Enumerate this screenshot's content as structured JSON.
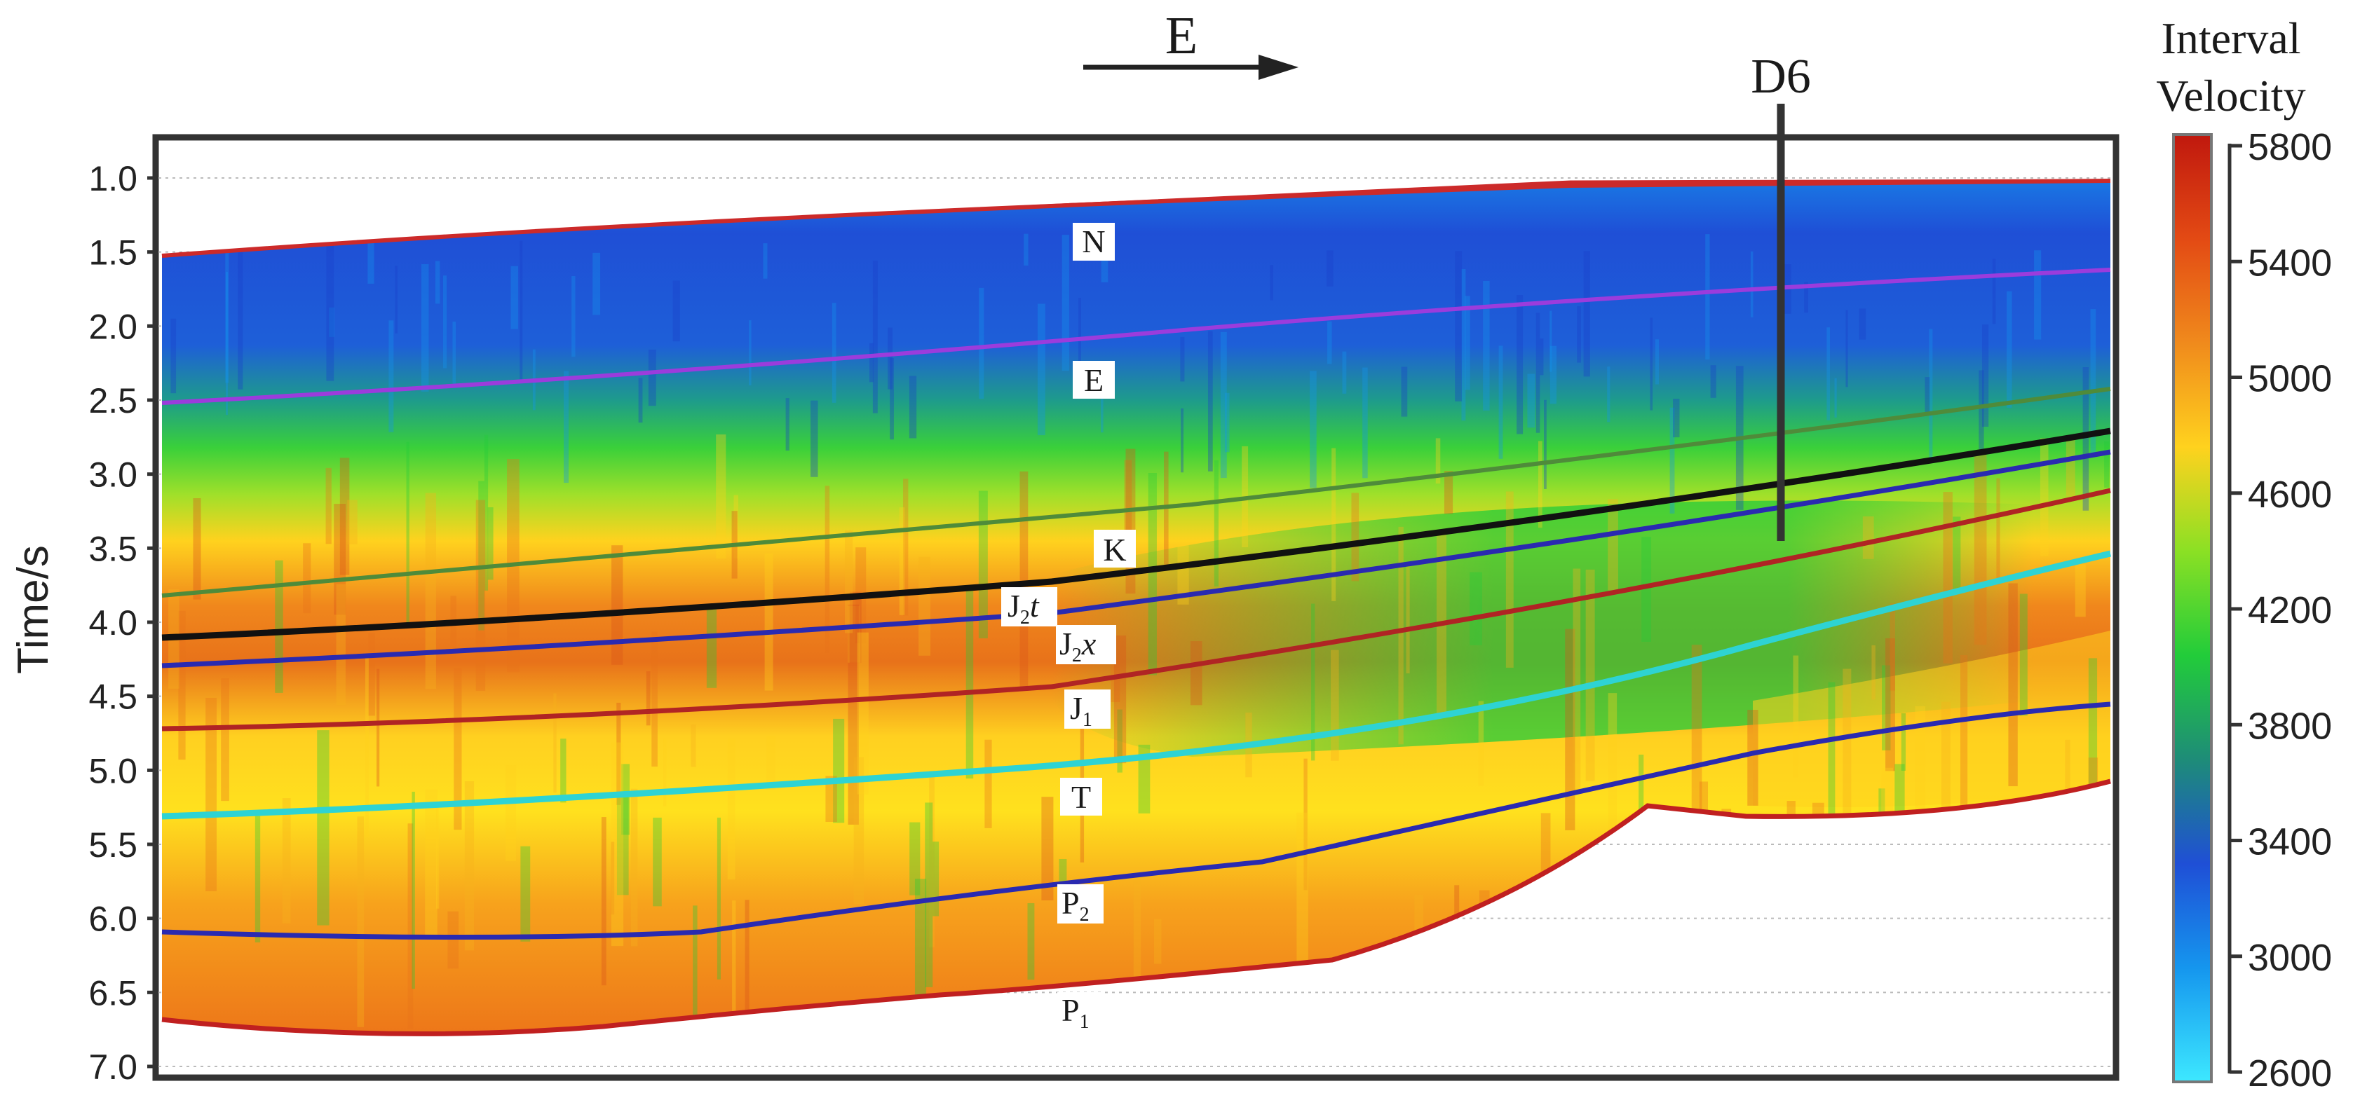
{
  "direction": {
    "label": "E"
  },
  "well": {
    "label": "D6"
  },
  "y_axis": {
    "label": "Time/s",
    "ticks": [
      "1.0",
      "1.5",
      "2.0",
      "2.5",
      "3.0",
      "3.5",
      "4.0",
      "4.5",
      "5.0",
      "5.5",
      "6.0",
      "6.5",
      "7.0"
    ]
  },
  "colorbar": {
    "title_line1": "Interval",
    "title_line2": "Velocity",
    "ticks": [
      "5800",
      "5400",
      "5000",
      "4600",
      "4200",
      "3800",
      "3400",
      "3000",
      "2600"
    ],
    "colors": [
      "#c0180e",
      "#e34a14",
      "#f08a1c",
      "#ffd21e",
      "#8be024",
      "#22cc3a",
      "#1e8c78",
      "#1f4fd6",
      "#1596ee",
      "#3de8ff"
    ]
  },
  "horizons": [
    {
      "name": "N",
      "sub": "",
      "italic": "",
      "color": "#cc2a2a"
    },
    {
      "name": "E",
      "sub": "",
      "italic": "",
      "color": "#9b3cdc"
    },
    {
      "name": "K",
      "sub": "",
      "italic": "",
      "color": "#4f8b3a"
    },
    {
      "name": "J",
      "sub": "2",
      "italic": "t",
      "color": "#111111"
    },
    {
      "name": "J",
      "sub": "2",
      "italic": "x",
      "color": "#2a2ab0"
    },
    {
      "name": "J",
      "sub": "1",
      "italic": "",
      "color": "#b02424"
    },
    {
      "name": "T",
      "sub": "",
      "italic": "",
      "color": "#2ed3d3"
    },
    {
      "name": "P",
      "sub": "2",
      "italic": "",
      "color": "#2a2ab0"
    },
    {
      "name": "P",
      "sub": "1",
      "italic": "",
      "color": "#c02020"
    }
  ]
}
